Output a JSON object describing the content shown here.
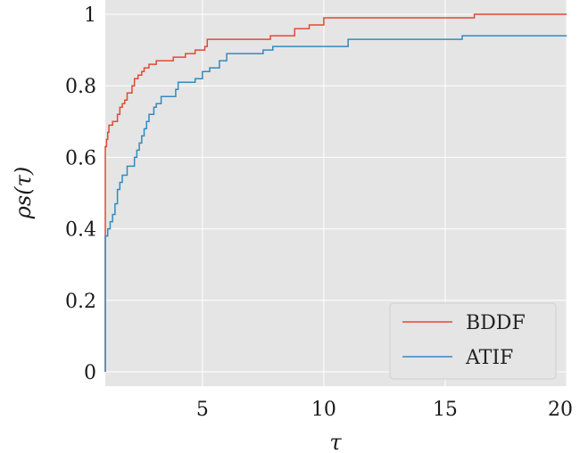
{
  "chart_data": {
    "type": "line",
    "xlabel": "τ",
    "ylabel": "ρs(τ)",
    "xlim": [
      1,
      20
    ],
    "ylim": [
      -0.04,
      1.04
    ],
    "xticks": [
      5,
      10,
      15,
      20
    ],
    "yticks": [
      0,
      0.2,
      0.4,
      0.6,
      0.8,
      1
    ],
    "ytick_labels": [
      "0",
      "0.2",
      "0.4",
      "0.6",
      "0.8",
      "1"
    ],
    "grid": true,
    "legend_position": "lower right",
    "style": {
      "background": "#e5e5e5",
      "grid_color": "#ffffff"
    },
    "series": [
      {
        "name": "BDDF",
        "color": "#e24a33",
        "x": [
          1.0,
          1.0,
          1.05,
          1.1,
          1.15,
          1.3,
          1.5,
          1.6,
          1.7,
          1.8,
          1.9,
          2.1,
          2.2,
          2.35,
          2.5,
          2.6,
          2.8,
          3.0,
          3.1,
          3.4,
          3.8,
          4.0,
          4.3,
          4.7,
          5.1,
          5.2,
          7.0,
          7.8,
          8.8,
          9.4,
          10.0,
          15.9,
          16.2,
          20.0
        ],
        "y": [
          0.0,
          0.63,
          0.65,
          0.67,
          0.69,
          0.7,
          0.72,
          0.74,
          0.75,
          0.76,
          0.78,
          0.8,
          0.82,
          0.83,
          0.84,
          0.85,
          0.86,
          0.86,
          0.87,
          0.87,
          0.88,
          0.88,
          0.89,
          0.9,
          0.91,
          0.93,
          0.93,
          0.94,
          0.96,
          0.97,
          0.99,
          0.99,
          1.0,
          1.0
        ]
      },
      {
        "name": "ATIF",
        "color": "#348abd",
        "x": [
          1.0,
          1.0,
          1.03,
          1.1,
          1.2,
          1.3,
          1.4,
          1.5,
          1.6,
          1.7,
          1.9,
          2.0,
          2.2,
          2.3,
          2.4,
          2.5,
          2.6,
          2.7,
          2.8,
          3.0,
          3.1,
          3.3,
          3.4,
          3.9,
          4.0,
          4.7,
          5.0,
          5.3,
          5.7,
          6.0,
          7.5,
          7.9,
          11.0,
          15.6,
          15.7,
          20.0
        ],
        "y": [
          0.0,
          0.38,
          0.38,
          0.4,
          0.42,
          0.44,
          0.47,
          0.51,
          0.53,
          0.55,
          0.575,
          0.575,
          0.6,
          0.62,
          0.64,
          0.66,
          0.68,
          0.7,
          0.72,
          0.74,
          0.75,
          0.77,
          0.77,
          0.79,
          0.81,
          0.82,
          0.84,
          0.85,
          0.87,
          0.89,
          0.9,
          0.91,
          0.93,
          0.93,
          0.94,
          0.94
        ]
      }
    ]
  }
}
